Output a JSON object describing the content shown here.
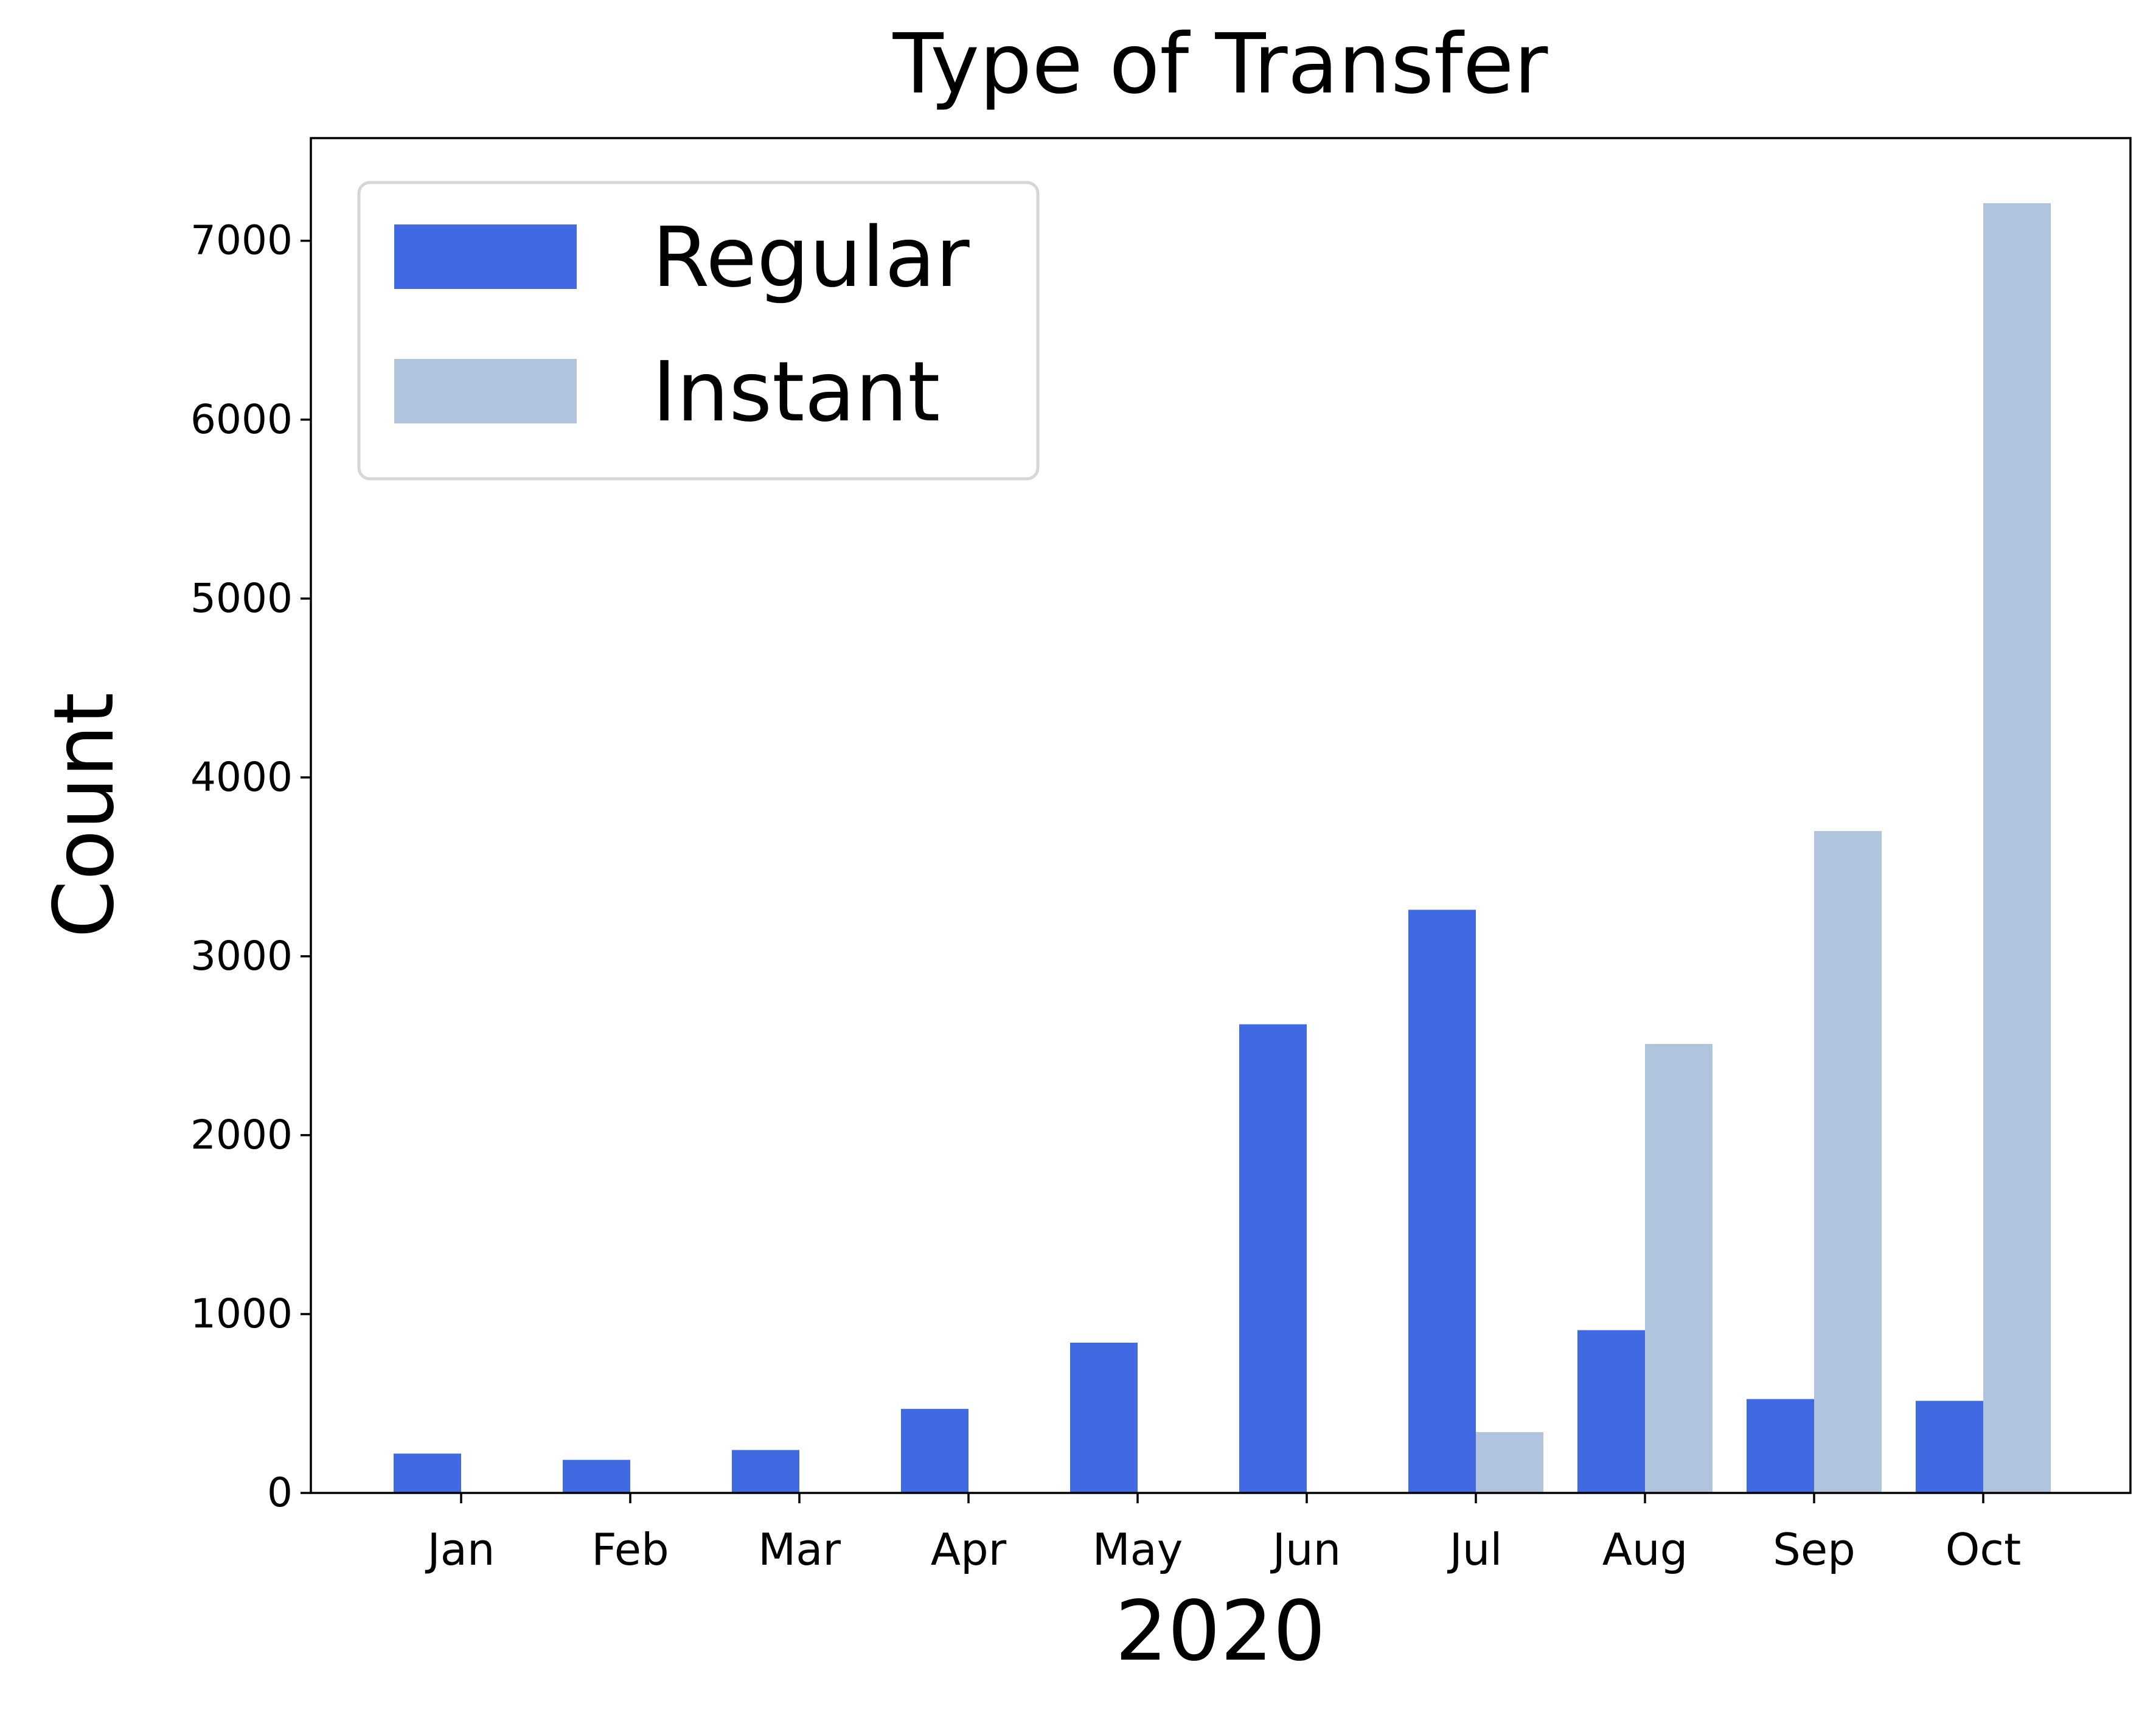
{
  "chart_data": {
    "type": "bar",
    "title": "Type of Transfer",
    "xlabel": "2020",
    "ylabel": "Count",
    "categories": [
      "Jan",
      "Feb",
      "Mar",
      "Apr",
      "May",
      "Jun",
      "Jul",
      "Aug",
      "Sep",
      "Oct"
    ],
    "series": [
      {
        "name": "Regular",
        "color": "#4169e1",
        "values": [
          220,
          185,
          240,
          470,
          840,
          2620,
          3260,
          910,
          525,
          515
        ]
      },
      {
        "name": "Instant",
        "color": "#b0c4de",
        "values": [
          0,
          0,
          0,
          0,
          0,
          0,
          340,
          2510,
          3700,
          7210
        ]
      }
    ],
    "ylim": [
      0,
      7560
    ],
    "yticks": [
      0,
      1000,
      2000,
      3000,
      4000,
      5000,
      6000,
      7000
    ],
    "grid": false,
    "legend": "top-left"
  }
}
